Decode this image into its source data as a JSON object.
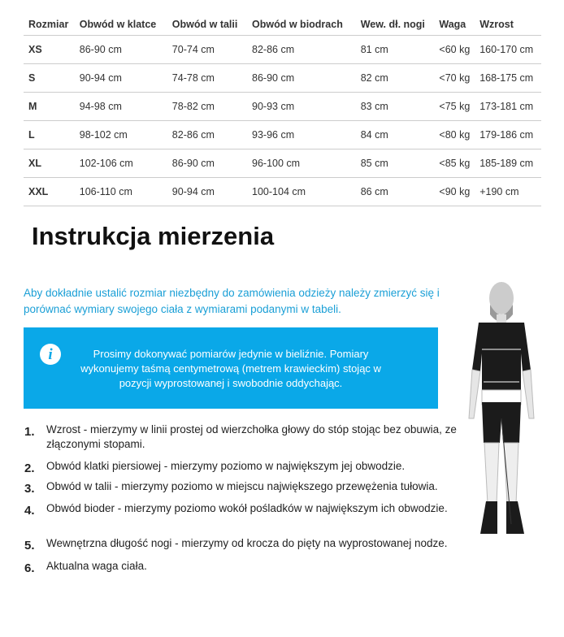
{
  "table": {
    "headers": [
      "Rozmiar",
      "Obwód w klatce",
      "Obwód w talii",
      "Obwód w biodrach",
      "Wew. dł. nogi",
      "Waga",
      "Wzrost"
    ],
    "rows": [
      [
        "XS",
        "86-90 cm",
        "70-74 cm",
        "82-86 cm",
        "81 cm",
        "<60 kg",
        "160-170 cm"
      ],
      [
        "S",
        "90-94 cm",
        "74-78 cm",
        "86-90 cm",
        "82 cm",
        "<70 kg",
        "168-175 cm"
      ],
      [
        "M",
        "94-98 cm",
        "78-82 cm",
        "90-93 cm",
        "83 cm",
        "<75 kg",
        "173-181 cm"
      ],
      [
        "L",
        "98-102 cm",
        "82-86 cm",
        "93-96 cm",
        "84 cm",
        "<80 kg",
        "179-186 cm"
      ],
      [
        "XL",
        "102-106 cm",
        "86-90 cm",
        "96-100 cm",
        "85 cm",
        "<85 kg",
        "185-189 cm"
      ],
      [
        "XXL",
        "106-110 cm",
        "90-94 cm",
        "100-104 cm",
        "86 cm",
        "<90 kg",
        "+190 cm"
      ]
    ]
  },
  "title": "Instrukcja mierzenia",
  "intro": "Aby dokładnie ustalić rozmiar niezbędny do zamówienia odzieży należy zmierzyć się i porównać wymiary swojego ciała z wymiarami podanymi w tabeli.",
  "info": {
    "icon": "info-icon",
    "text": "Prosimy dokonywać pomiarów jedynie w bieliźnie. Pomiary wykonujemy taśmą centymetrową (metrem krawieckim) stojąc w pozycji wyprostowanej i swobodnie oddychając.",
    "color": "#0aa8e8"
  },
  "steps": [
    {
      "n": "1.",
      "text": "Wzrost - mierzymy w linii prostej od wierzchołka głowy do stóp stojąc bez obuwia, ze złączonymi stopami."
    },
    {
      "n": "2.",
      "text": "Obwód klatki piersiowej - mierzymy poziomo w największym jej obwodzie."
    },
    {
      "n": "3.",
      "text": "Obwód w talii - mierzymy poziomo w miejscu największego przewężenia tułowia."
    },
    {
      "n": "4.",
      "text": "Obwód bioder - mierzymy poziomo wokół pośladków w największym ich obwodzie."
    },
    {
      "n": "5.",
      "text": "Wewnętrzna długość nogi - mierzymy od krocza do pięty na wyprostowanej nodze."
    },
    {
      "n": "6.",
      "text": "Aktualna waga ciała."
    }
  ]
}
